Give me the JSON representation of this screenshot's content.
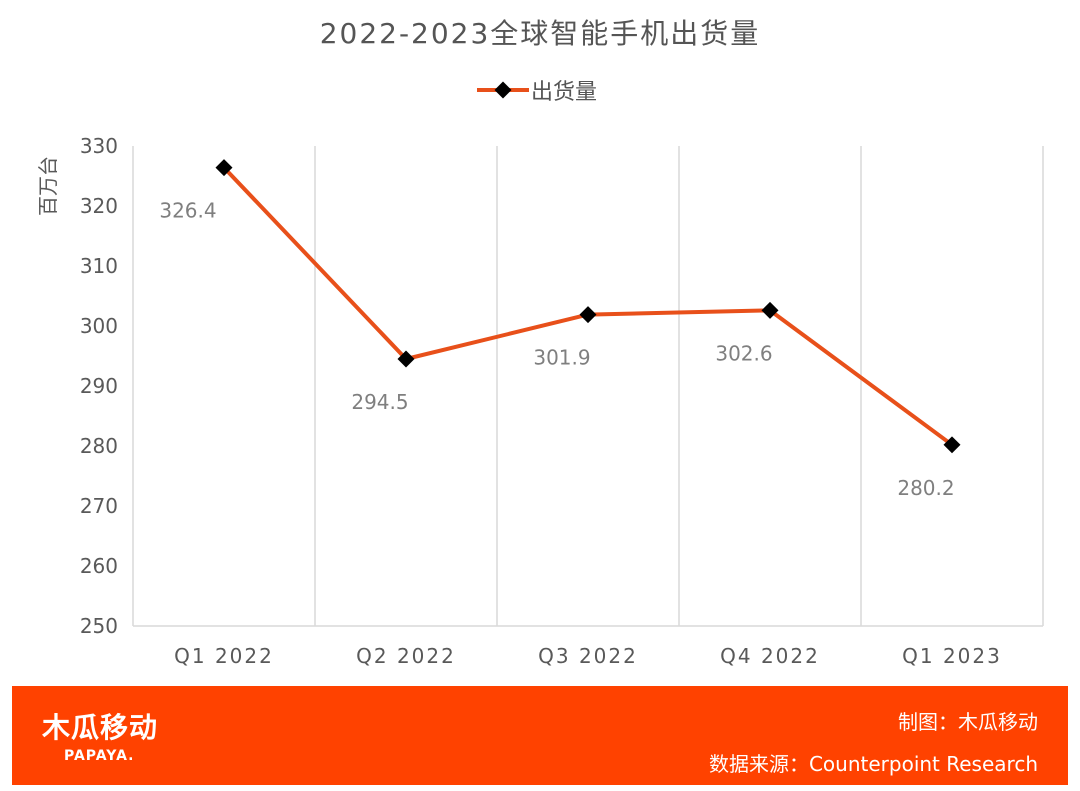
{
  "chart_data": {
    "type": "line",
    "title": "2022-2023全球智能手机出货量",
    "ylabel": "百万台",
    "xlabel": "",
    "categories": [
      "Q1 2022",
      "Q2 2022",
      "Q3 2022",
      "Q4 2022",
      "Q1 2023"
    ],
    "series": [
      {
        "name": "出货量",
        "values": [
          326.4,
          294.5,
          301.9,
          302.6,
          280.2
        ],
        "color": "#e8501a",
        "marker": "diamond",
        "marker_color": "#000000"
      }
    ],
    "ylim": [
      250,
      330
    ],
    "yticks": [
      250,
      260,
      270,
      280,
      290,
      300,
      310,
      320,
      330
    ],
    "grid": "vertical",
    "legend": "top-center",
    "data_labels": [
      "326.4",
      "294.5",
      "301.9",
      "302.6",
      "280.2"
    ]
  },
  "footer": {
    "logo_cn": "木瓜移动",
    "logo_en": "PAPAYA.",
    "credit": "制图：木瓜移动",
    "source": "数据来源：Counterpoint Research",
    "background": "#ff4200"
  }
}
